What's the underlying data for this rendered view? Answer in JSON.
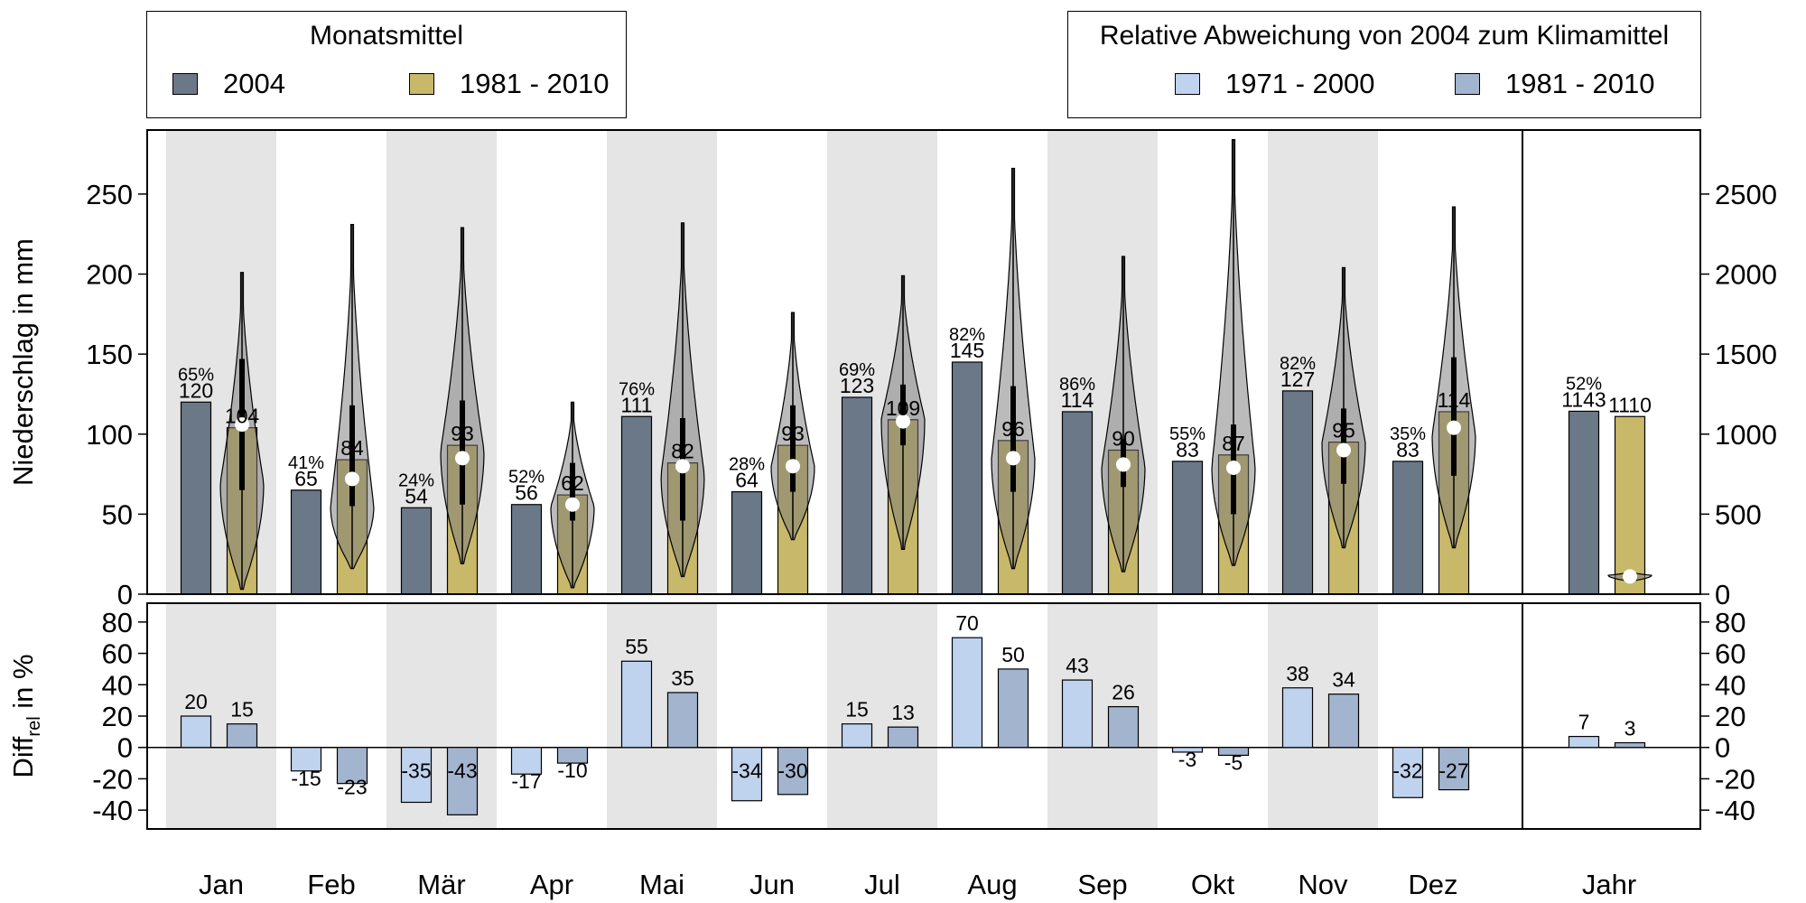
{
  "legend_monthly": {
    "title": "Monatsmittel",
    "items": [
      {
        "label": "2004",
        "color": "#6b7888"
      },
      {
        "label": "1981 - 2010",
        "color": "#c8b86a"
      }
    ]
  },
  "legend_deviation": {
    "title": "Relative Abweichung von 2004 zum Klimamittel",
    "items": [
      {
        "label": "1971 - 2000",
        "color": "#bfd3ef"
      },
      {
        "label": "1981 - 2010",
        "color": "#a3b4cf"
      }
    ]
  },
  "chart_data": [
    {
      "type": "bar",
      "ylabel": "Niederschlag in mm",
      "ylim": [
        0,
        290
      ],
      "yticks": [
        0,
        50,
        100,
        150,
        200,
        250
      ],
      "y2ticks": [
        0,
        500,
        1000,
        1500,
        2000,
        2500
      ],
      "y2_factor": 10,
      "categories": [
        "Jan",
        "Feb",
        "Mär",
        "Apr",
        "Mai",
        "Jun",
        "Jul",
        "Aug",
        "Sep",
        "Okt",
        "Nov",
        "Dez",
        "Jahr"
      ],
      "series": [
        {
          "name": "2004",
          "values": [
            120,
            65,
            54,
            56,
            111,
            64,
            123,
            145,
            114,
            83,
            127,
            83,
            1143
          ]
        },
        {
          "name": "1981 - 2010",
          "values": [
            104,
            84,
            93,
            62,
            82,
            93,
            109,
            96,
            90,
            87,
            95,
            114,
            1110
          ]
        }
      ],
      "percent_labels": [
        "65%",
        "41%",
        "24%",
        "52%",
        "76%",
        "28%",
        "69%",
        "82%",
        "86%",
        "55%",
        "82%",
        "35%",
        "52%"
      ],
      "distributions": [
        {
          "min": 3,
          "max": 201,
          "q1": 65,
          "q3": 147,
          "median": 106,
          "peak": 70
        },
        {
          "min": 16,
          "max": 231,
          "q1": 55,
          "q3": 118,
          "median": 72,
          "peak": 55
        },
        {
          "min": 19,
          "max": 229,
          "q1": 56,
          "q3": 121,
          "median": 85,
          "peak": 90
        },
        {
          "min": 4,
          "max": 120,
          "q1": 46,
          "q3": 82,
          "median": 56,
          "peak": 55
        },
        {
          "min": 11,
          "max": 232,
          "q1": 46,
          "q3": 110,
          "median": 80,
          "peak": 75
        },
        {
          "min": 34,
          "max": 176,
          "q1": 64,
          "q3": 118,
          "median": 80,
          "peak": 80
        },
        {
          "min": 28,
          "max": 199,
          "q1": 93,
          "q3": 131,
          "median": 108,
          "peak": 110
        },
        {
          "min": 16,
          "max": 266,
          "q1": 64,
          "q3": 130,
          "median": 85,
          "peak": 85
        },
        {
          "min": 14,
          "max": 211,
          "q1": 67,
          "q3": 97,
          "median": 81,
          "peak": 80
        },
        {
          "min": 18,
          "max": 284,
          "q1": 50,
          "q3": 106,
          "median": 79,
          "peak": 80
        },
        {
          "min": 29,
          "max": 204,
          "q1": 69,
          "q3": 116,
          "median": 90,
          "peak": 95
        },
        {
          "min": 29,
          "max": 242,
          "q1": 74,
          "q3": 148,
          "median": 104,
          "peak": 100
        },
        {
          "min": 81,
          "max": 140,
          "q1": 100,
          "q3": 124,
          "median": 111,
          "peak": 118
        }
      ]
    },
    {
      "type": "bar",
      "ylabel_main": "Diff",
      "ylabel_sub": "rel",
      "ylabel_rest": " in %",
      "ylim": [
        -52,
        92
      ],
      "yticks": [
        -40,
        -20,
        0,
        20,
        40,
        60,
        80
      ],
      "categories": [
        "Jan",
        "Feb",
        "Mär",
        "Apr",
        "Mai",
        "Jun",
        "Jul",
        "Aug",
        "Sep",
        "Okt",
        "Nov",
        "Dez",
        "Jahr"
      ],
      "series": [
        {
          "name": "1971 - 2000",
          "values": [
            20,
            -15,
            -35,
            -17,
            55,
            -34,
            15,
            70,
            43,
            -3,
            38,
            -32,
            7
          ]
        },
        {
          "name": "1981 - 2010",
          "values": [
            15,
            -23,
            -43,
            -10,
            35,
            -30,
            13,
            50,
            26,
            -5,
            34,
            -27,
            3
          ]
        }
      ]
    }
  ]
}
